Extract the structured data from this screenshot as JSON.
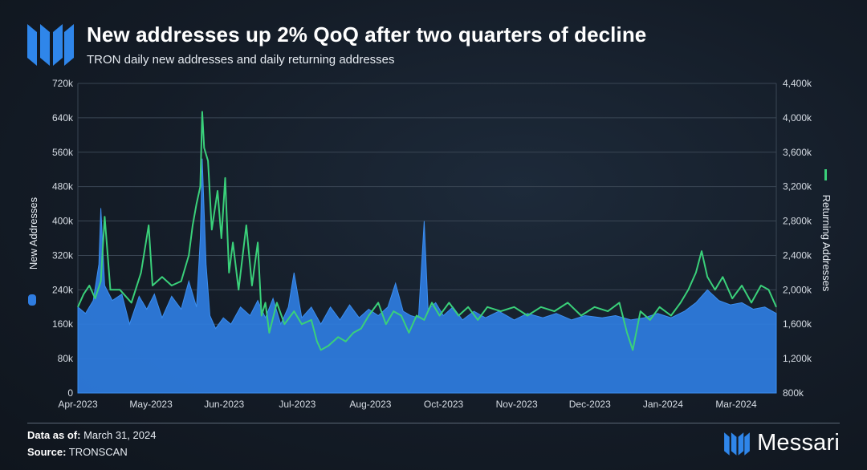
{
  "header": {
    "title": "New addresses up 2% QoQ after two quarters of decline",
    "subtitle": "TRON daily new addresses and daily returning addresses"
  },
  "footer": {
    "data_as_of_label": "Data as of:",
    "data_as_of_value": "March 31, 2024",
    "source_label": "Source:",
    "source_value": "TRONSCAN"
  },
  "brand": {
    "name": "Messari"
  },
  "colors": {
    "new_addresses": "#2f7de1",
    "returning_addresses": "#3ad07a",
    "logo": "#2f86ea"
  },
  "chart_data": {
    "type": "area",
    "title": "New addresses up 2% QoQ after two quarters of decline",
    "subtitle": "TRON daily new addresses and daily returning addresses",
    "x_ticks": [
      "Apr-2023",
      "May-2023",
      "Jun-2023",
      "Jul-2023",
      "Aug-2023",
      "Oct-2023",
      "Nov-2023",
      "Dec-2023",
      "Jan-2024",
      "Mar-2024"
    ],
    "y_left": {
      "label": "New Addresses",
      "ylim": [
        0,
        720000
      ],
      "ticks": [
        "0",
        "80k",
        "160k",
        "240k",
        "320k",
        "400k",
        "480k",
        "560k",
        "640k",
        "720k"
      ]
    },
    "y_right": {
      "label": "Returning Addresses",
      "ylim": [
        800000,
        4400000
      ],
      "ticks": [
        "800k",
        "1,200k",
        "1,600k",
        "2,000k",
        "2,400k",
        "2,800k",
        "3,200k",
        "3,600k",
        "4,000k",
        "4,400k"
      ]
    },
    "x_range": [
      "2023-04-01",
      "2024-03-31"
    ],
    "series": [
      {
        "name": "New Addresses",
        "type": "area",
        "axis": "left",
        "points": [
          [
            "2023-04-01",
            200000
          ],
          [
            "2023-04-05",
            185000
          ],
          [
            "2023-04-09",
            215000
          ],
          [
            "2023-04-12",
            300000
          ],
          [
            "2023-04-13",
            430000
          ],
          [
            "2023-04-15",
            250000
          ],
          [
            "2023-04-19",
            215000
          ],
          [
            "2023-04-24",
            230000
          ],
          [
            "2023-04-28",
            160000
          ],
          [
            "2023-05-03",
            225000
          ],
          [
            "2023-05-07",
            195000
          ],
          [
            "2023-05-11",
            230000
          ],
          [
            "2023-05-15",
            175000
          ],
          [
            "2023-05-20",
            225000
          ],
          [
            "2023-05-25",
            195000
          ],
          [
            "2023-05-29",
            260000
          ],
          [
            "2023-06-02",
            200000
          ],
          [
            "2023-06-04",
            360000
          ],
          [
            "2023-06-05",
            545000
          ],
          [
            "2023-06-07",
            300000
          ],
          [
            "2023-06-09",
            180000
          ],
          [
            "2023-06-12",
            150000
          ],
          [
            "2023-06-16",
            175000
          ],
          [
            "2023-06-20",
            160000
          ],
          [
            "2023-06-25",
            200000
          ],
          [
            "2023-06-30",
            180000
          ],
          [
            "2023-07-04",
            215000
          ],
          [
            "2023-07-08",
            175000
          ],
          [
            "2023-07-12",
            220000
          ],
          [
            "2023-07-16",
            160000
          ],
          [
            "2023-07-20",
            200000
          ],
          [
            "2023-07-23",
            280000
          ],
          [
            "2023-07-27",
            175000
          ],
          [
            "2023-08-01",
            200000
          ],
          [
            "2023-08-06",
            160000
          ],
          [
            "2023-08-11",
            200000
          ],
          [
            "2023-08-16",
            170000
          ],
          [
            "2023-08-21",
            205000
          ],
          [
            "2023-08-26",
            175000
          ],
          [
            "2023-08-31",
            195000
          ],
          [
            "2023-09-05",
            180000
          ],
          [
            "2023-09-10",
            200000
          ],
          [
            "2023-09-14",
            255000
          ],
          [
            "2023-09-18",
            190000
          ],
          [
            "2023-09-22",
            180000
          ],
          [
            "2023-09-26",
            175000
          ],
          [
            "2023-09-29",
            400000
          ],
          [
            "2023-10-01",
            195000
          ],
          [
            "2023-10-05",
            210000
          ],
          [
            "2023-10-09",
            180000
          ],
          [
            "2023-10-14",
            200000
          ],
          [
            "2023-10-19",
            170000
          ],
          [
            "2023-10-25",
            190000
          ],
          [
            "2023-10-31",
            175000
          ],
          [
            "2023-11-07",
            190000
          ],
          [
            "2023-11-15",
            170000
          ],
          [
            "2023-11-22",
            185000
          ],
          [
            "2023-11-30",
            175000
          ],
          [
            "2023-12-07",
            185000
          ],
          [
            "2023-12-15",
            170000
          ],
          [
            "2023-12-22",
            180000
          ],
          [
            "2023-12-31",
            175000
          ],
          [
            "2024-01-07",
            180000
          ],
          [
            "2024-01-15",
            170000
          ],
          [
            "2024-01-22",
            175000
          ],
          [
            "2024-01-29",
            185000
          ],
          [
            "2024-02-05",
            175000
          ],
          [
            "2024-02-12",
            190000
          ],
          [
            "2024-02-18",
            210000
          ],
          [
            "2024-02-24",
            240000
          ],
          [
            "2024-03-01",
            215000
          ],
          [
            "2024-03-07",
            205000
          ],
          [
            "2024-03-13",
            210000
          ],
          [
            "2024-03-19",
            195000
          ],
          [
            "2024-03-25",
            200000
          ],
          [
            "2024-03-31",
            185000
          ]
        ]
      },
      {
        "name": "Returning Addresses",
        "type": "line",
        "axis": "right",
        "points": [
          [
            "2023-04-01",
            1800000
          ],
          [
            "2023-04-04",
            1950000
          ],
          [
            "2023-04-07",
            2050000
          ],
          [
            "2023-04-10",
            1900000
          ],
          [
            "2023-04-13",
            2100000
          ],
          [
            "2023-04-15",
            2850000
          ],
          [
            "2023-04-18",
            2000000
          ],
          [
            "2023-04-23",
            2000000
          ],
          [
            "2023-04-29",
            1850000
          ],
          [
            "2023-05-04",
            2200000
          ],
          [
            "2023-05-08",
            2750000
          ],
          [
            "2023-05-10",
            2050000
          ],
          [
            "2023-05-15",
            2150000
          ],
          [
            "2023-05-20",
            2050000
          ],
          [
            "2023-05-25",
            2100000
          ],
          [
            "2023-05-29",
            2400000
          ],
          [
            "2023-05-31",
            2750000
          ],
          [
            "2023-06-02",
            3000000
          ],
          [
            "2023-06-04",
            3200000
          ],
          [
            "2023-06-05",
            4070000
          ],
          [
            "2023-06-06",
            3650000
          ],
          [
            "2023-06-08",
            3500000
          ],
          [
            "2023-06-10",
            2700000
          ],
          [
            "2023-06-13",
            3150000
          ],
          [
            "2023-06-15",
            2600000
          ],
          [
            "2023-06-17",
            3300000
          ],
          [
            "2023-06-19",
            2200000
          ],
          [
            "2023-06-21",
            2550000
          ],
          [
            "2023-06-24",
            2000000
          ],
          [
            "2023-06-28",
            2750000
          ],
          [
            "2023-07-01",
            2050000
          ],
          [
            "2023-07-04",
            2550000
          ],
          [
            "2023-07-06",
            1700000
          ],
          [
            "2023-07-08",
            1850000
          ],
          [
            "2023-07-10",
            1500000
          ],
          [
            "2023-07-14",
            1850000
          ],
          [
            "2023-07-18",
            1600000
          ],
          [
            "2023-07-23",
            1750000
          ],
          [
            "2023-07-27",
            1600000
          ],
          [
            "2023-08-01",
            1650000
          ],
          [
            "2023-08-04",
            1400000
          ],
          [
            "2023-08-06",
            1300000
          ],
          [
            "2023-08-10",
            1350000
          ],
          [
            "2023-08-15",
            1450000
          ],
          [
            "2023-08-19",
            1400000
          ],
          [
            "2023-08-23",
            1500000
          ],
          [
            "2023-08-27",
            1550000
          ],
          [
            "2023-08-31",
            1700000
          ],
          [
            "2023-09-05",
            1850000
          ],
          [
            "2023-09-09",
            1600000
          ],
          [
            "2023-09-13",
            1750000
          ],
          [
            "2023-09-17",
            1700000
          ],
          [
            "2023-09-21",
            1500000
          ],
          [
            "2023-09-25",
            1700000
          ],
          [
            "2023-09-29",
            1650000
          ],
          [
            "2023-10-03",
            1850000
          ],
          [
            "2023-10-07",
            1700000
          ],
          [
            "2023-10-12",
            1850000
          ],
          [
            "2023-10-17",
            1700000
          ],
          [
            "2023-10-22",
            1800000
          ],
          [
            "2023-10-27",
            1650000
          ],
          [
            "2023-11-01",
            1800000
          ],
          [
            "2023-11-08",
            1750000
          ],
          [
            "2023-11-15",
            1800000
          ],
          [
            "2023-11-22",
            1700000
          ],
          [
            "2023-11-29",
            1800000
          ],
          [
            "2023-12-06",
            1750000
          ],
          [
            "2023-12-13",
            1850000
          ],
          [
            "2023-12-20",
            1700000
          ],
          [
            "2023-12-27",
            1800000
          ],
          [
            "2024-01-03",
            1750000
          ],
          [
            "2024-01-09",
            1850000
          ],
          [
            "2024-01-13",
            1500000
          ],
          [
            "2024-01-16",
            1300000
          ],
          [
            "2024-01-20",
            1750000
          ],
          [
            "2024-01-25",
            1650000
          ],
          [
            "2024-01-30",
            1800000
          ],
          [
            "2024-02-05",
            1700000
          ],
          [
            "2024-02-10",
            1850000
          ],
          [
            "2024-02-14",
            2000000
          ],
          [
            "2024-02-18",
            2200000
          ],
          [
            "2024-02-21",
            2450000
          ],
          [
            "2024-02-24",
            2150000
          ],
          [
            "2024-02-28",
            2000000
          ],
          [
            "2024-03-03",
            2150000
          ],
          [
            "2024-03-08",
            1900000
          ],
          [
            "2024-03-13",
            2050000
          ],
          [
            "2024-03-18",
            1850000
          ],
          [
            "2024-03-23",
            2050000
          ],
          [
            "2024-03-27",
            2000000
          ],
          [
            "2024-03-31",
            1800000
          ]
        ]
      }
    ],
    "legend": "axis-labels",
    "grid": true
  }
}
